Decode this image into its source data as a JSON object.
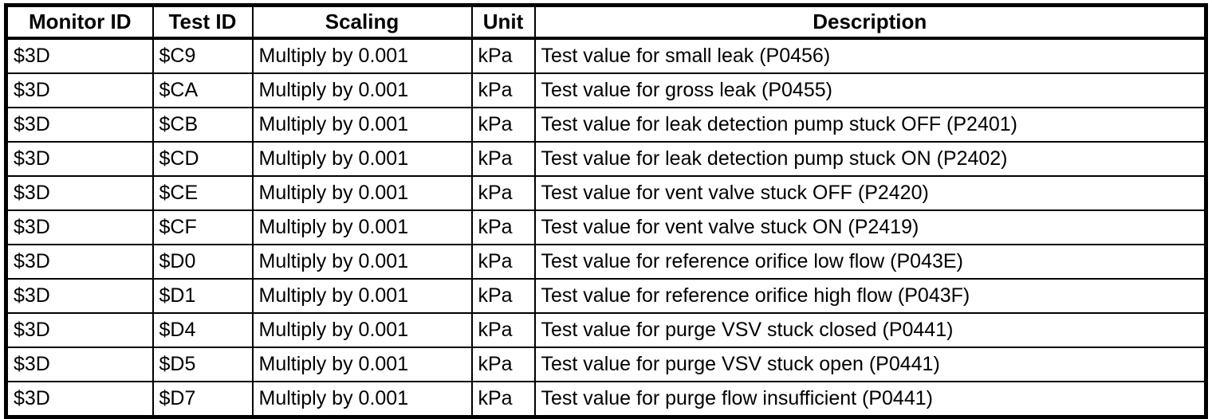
{
  "table": {
    "columns": [
      "Monitor ID",
      "Test ID",
      "Scaling",
      "Unit",
      "Description"
    ],
    "rows": [
      {
        "monitor_id": "$3D",
        "test_id": "$C9",
        "scaling": "Multiply by 0.001",
        "unit": "kPa",
        "description": "Test value for small leak (P0456)"
      },
      {
        "monitor_id": "$3D",
        "test_id": "$CA",
        "scaling": "Multiply by 0.001",
        "unit": "kPa",
        "description": "Test value for gross leak (P0455)"
      },
      {
        "monitor_id": "$3D",
        "test_id": "$CB",
        "scaling": "Multiply by 0.001",
        "unit": "kPa",
        "description": "Test value for leak detection pump stuck OFF (P2401)"
      },
      {
        "monitor_id": "$3D",
        "test_id": "$CD",
        "scaling": "Multiply by 0.001",
        "unit": "kPa",
        "description": "Test value for leak detection pump stuck ON (P2402)"
      },
      {
        "monitor_id": "$3D",
        "test_id": "$CE",
        "scaling": "Multiply by 0.001",
        "unit": "kPa",
        "description": "Test value for vent valve stuck OFF (P2420)"
      },
      {
        "monitor_id": "$3D",
        "test_id": "$CF",
        "scaling": "Multiply by 0.001",
        "unit": "kPa",
        "description": "Test value for vent valve stuck ON (P2419)"
      },
      {
        "monitor_id": "$3D",
        "test_id": "$D0",
        "scaling": "Multiply by 0.001",
        "unit": "kPa",
        "description": "Test value for reference orifice low flow (P043E)"
      },
      {
        "monitor_id": "$3D",
        "test_id": "$D1",
        "scaling": "Multiply by 0.001",
        "unit": "kPa",
        "description": "Test value for reference orifice high flow (P043F)"
      },
      {
        "monitor_id": "$3D",
        "test_id": "$D4",
        "scaling": "Multiply by 0.001",
        "unit": "kPa",
        "description": "Test value for purge VSV stuck closed (P0441)"
      },
      {
        "monitor_id": "$3D",
        "test_id": "$D5",
        "scaling": "Multiply by 0.001",
        "unit": "kPa",
        "description": "Test value for purge VSV stuck open (P0441)"
      },
      {
        "monitor_id": "$3D",
        "test_id": "$D7",
        "scaling": "Multiply by 0.001",
        "unit": "kPa",
        "description": "Test value for purge flow insufficient (P0441)"
      }
    ],
    "colors": {
      "border": "#000000",
      "text": "#000000",
      "background": "#ffffff"
    }
  }
}
